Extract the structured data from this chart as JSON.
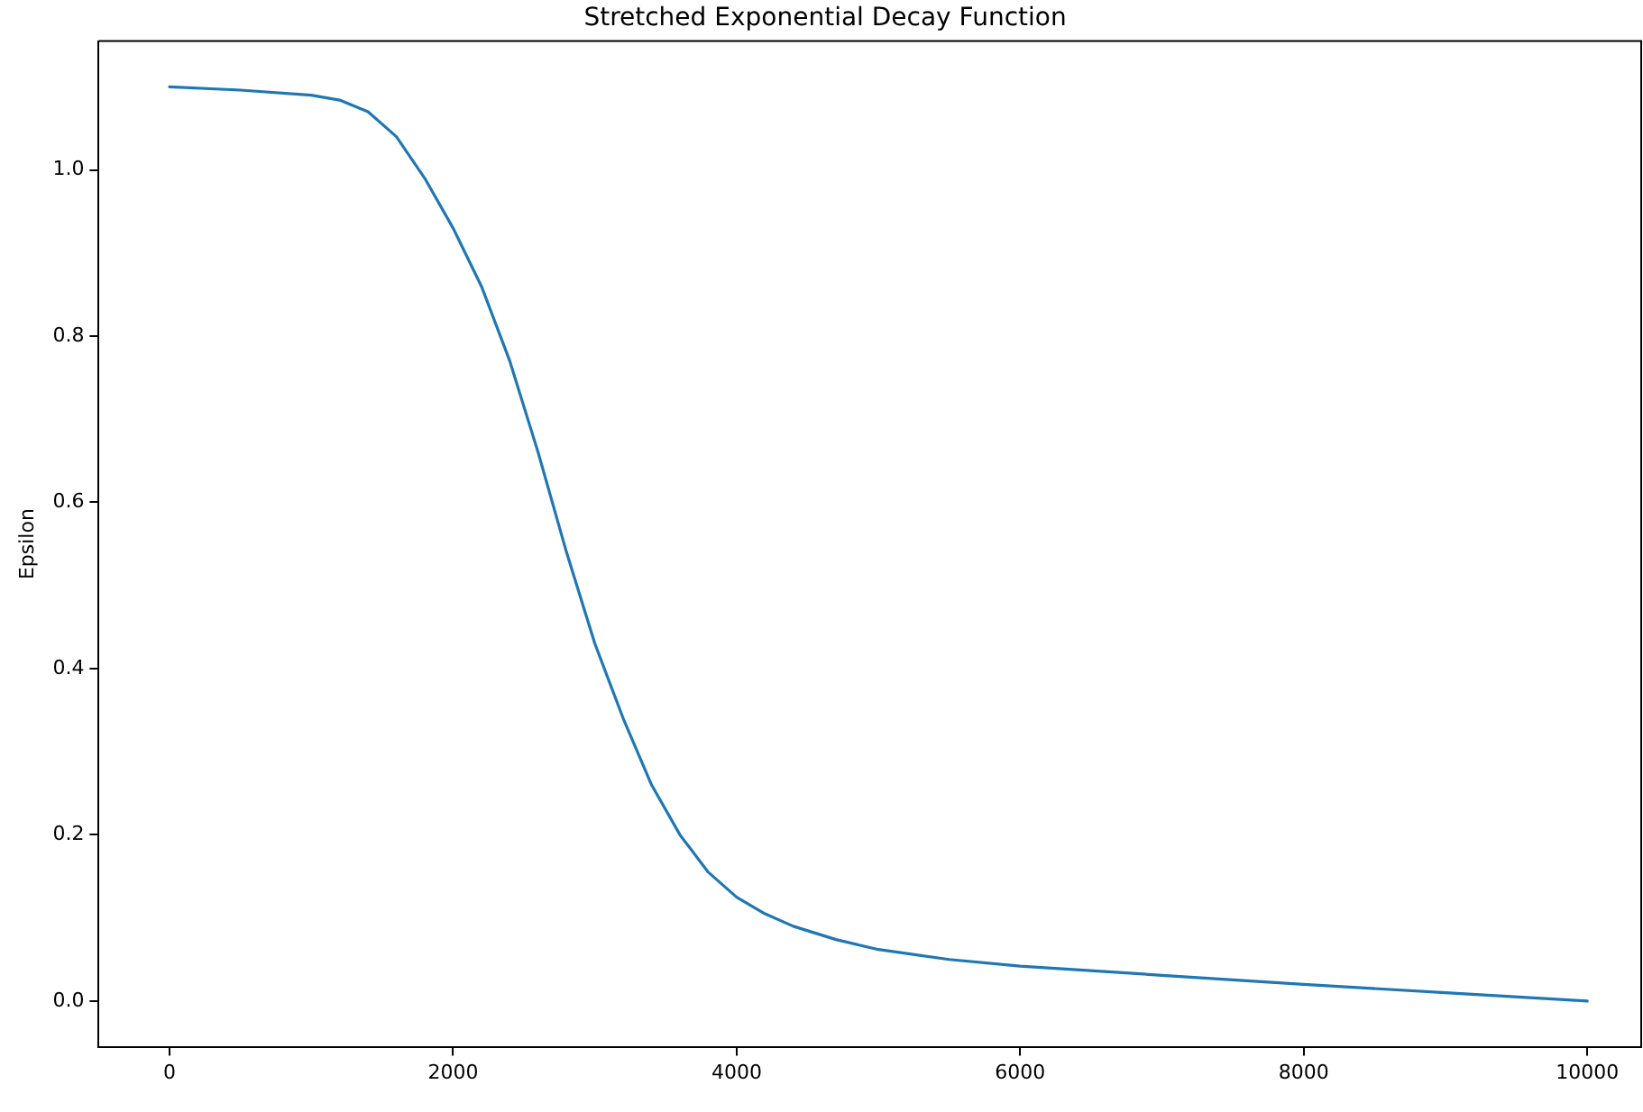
{
  "chart_data": {
    "type": "line",
    "title": "Stretched Exponential Decay Function",
    "ylabel": "Epsilon",
    "x": [
      0,
      500,
      1000,
      1200,
      1400,
      1600,
      1800,
      2000,
      2200,
      2400,
      2600,
      2800,
      3000,
      3200,
      3400,
      3600,
      3800,
      4000,
      4200,
      4400,
      4700,
      5000,
      5500,
      6000,
      7000,
      8000,
      9000,
      10000
    ],
    "series": [
      {
        "color": "#1f77b4",
        "values": [
          1.1,
          1.096,
          1.09,
          1.084,
          1.07,
          1.04,
          0.99,
          0.93,
          0.86,
          0.77,
          0.66,
          0.54,
          0.43,
          0.34,
          0.26,
          0.2,
          0.155,
          0.125,
          0.105,
          0.09,
          0.074,
          0.062,
          0.05,
          0.042,
          0.031,
          0.02,
          0.01,
          0.0
        ]
      }
    ],
    "xlim": [
      -500,
      10380
    ],
    "ylim": [
      -0.055,
      1.155
    ],
    "xticks": [
      0,
      2000,
      4000,
      6000,
      8000,
      10000
    ],
    "yticks": [
      {
        "value": 0,
        "label": "0.0"
      },
      {
        "value": 0.2,
        "label": "0.2"
      },
      {
        "value": 0.4,
        "label": "0.4"
      },
      {
        "value": 0.6,
        "label": "0.6"
      },
      {
        "value": 0.8,
        "label": "0.8"
      },
      {
        "value": 1,
        "label": "1.0"
      }
    ],
    "grid": false,
    "legend": false,
    "marker": "none",
    "line_style": "solid"
  }
}
